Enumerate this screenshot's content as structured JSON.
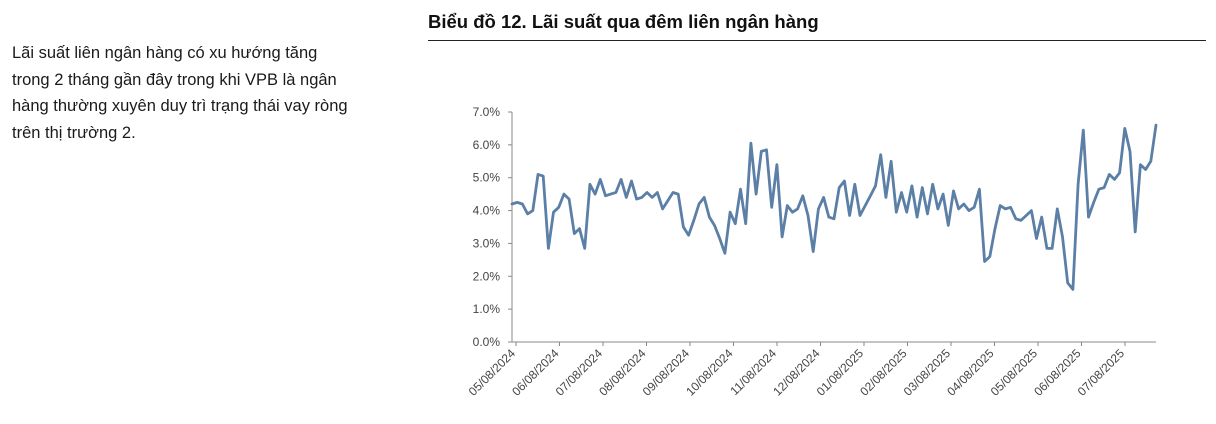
{
  "commentary": {
    "lines": [
      "Lãi suất liên ngân hàng có xu hướng tăng",
      "trong 2 tháng gần đây trong khi VPB là ngân",
      "hàng thường xuyên duy trì trạng thái vay ròng",
      "trên thị trường 2."
    ]
  },
  "chart_data": {
    "type": "line",
    "title": "Biểu đồ 12. Lãi suất qua đêm liên ngân hàng",
    "xlabel": "",
    "ylabel": "",
    "ylim": [
      0,
      7
    ],
    "y_ticks": [
      "7.0%",
      "6.0%",
      "5.0%",
      "4.0%",
      "3.0%",
      "2.0%",
      "1.0%",
      "0.0%"
    ],
    "x_ticks": [
      "05/08/2024",
      "06/08/2024",
      "07/08/2024",
      "08/08/2024",
      "09/08/2024",
      "10/08/2024",
      "11/08/2024",
      "12/08/2024",
      "01/08/2025",
      "02/08/2025",
      "03/08/2025",
      "04/08/2025",
      "05/08/2025",
      "06/08/2025",
      "07/08/2025"
    ],
    "grid": false,
    "line_color": "#5b7fa6",
    "series": [
      {
        "x_start": "2024-05-08",
        "x_end": "2025-07-31",
        "values": [
          4.2,
          4.25,
          4.2,
          3.9,
          4.0,
          5.1,
          5.05,
          2.85,
          3.95,
          4.1,
          4.5,
          4.35,
          3.3,
          3.45,
          2.85,
          4.8,
          4.5,
          4.95,
          4.45,
          4.5,
          4.55,
          4.95,
          4.4,
          4.9,
          4.35,
          4.4,
          4.55,
          4.4,
          4.55,
          4.05,
          4.3,
          4.55,
          4.5,
          3.5,
          3.25,
          3.7,
          4.2,
          4.4,
          3.8,
          3.55,
          3.15,
          2.7,
          3.95,
          3.6,
          4.65,
          3.6,
          6.05,
          4.5,
          5.8,
          5.85,
          4.1,
          5.4,
          3.2,
          4.15,
          3.95,
          4.05,
          4.45,
          3.85,
          2.75,
          4.05,
          4.4,
          3.8,
          3.75,
          4.7,
          4.9,
          3.85,
          4.8,
          3.85,
          4.15,
          4.45,
          4.75,
          5.7,
          4.4,
          5.5,
          3.95,
          4.55,
          3.95,
          4.75,
          3.8,
          4.7,
          3.9,
          4.8,
          4.05,
          4.5,
          3.55,
          4.6,
          4.05,
          4.2,
          4.0,
          4.1,
          4.65,
          2.45,
          2.6,
          3.45,
          4.15,
          4.05,
          4.1,
          3.75,
          3.7,
          3.85,
          4.0,
          3.15,
          3.8,
          2.85,
          2.85,
          4.05,
          3.2,
          1.8,
          1.6,
          4.8,
          6.45,
          3.8,
          4.25,
          4.65,
          4.7,
          5.1,
          4.95,
          5.15,
          6.5,
          5.8,
          3.35,
          5.4,
          5.25,
          5.5,
          6.6
        ]
      }
    ]
  }
}
